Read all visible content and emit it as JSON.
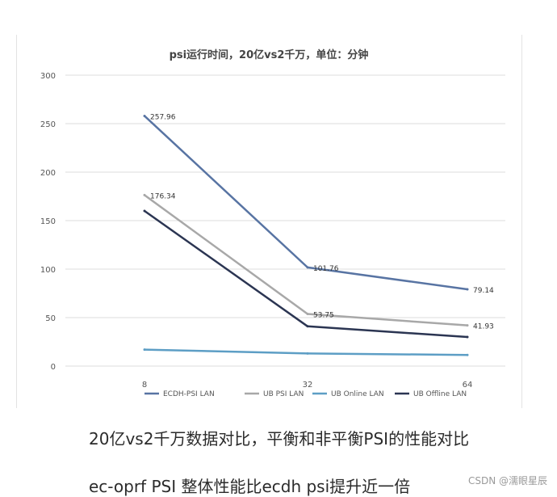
{
  "chart_data": {
    "type": "line",
    "title": "psi运行时间，20亿vs2千万，单位：分钟",
    "xlabel": "",
    "ylabel": "",
    "categories": [
      "8",
      "32",
      "64"
    ],
    "ylim": [
      0,
      300
    ],
    "yticks": [
      0,
      50,
      100,
      150,
      200,
      250,
      300
    ],
    "grid": true,
    "legend_position": "bottom",
    "series": [
      {
        "name": "ECDH-PSI LAN",
        "color": "#5874a3",
        "values": [
          257.96,
          101.76,
          79.14
        ],
        "labels": [
          "257.96",
          "101.76",
          "79.14"
        ]
      },
      {
        "name": "UB PSI LAN",
        "color": "#a8a8a8",
        "values": [
          176.34,
          53.75,
          41.93
        ],
        "labels": [
          "176.34",
          "53.75",
          "41.93"
        ]
      },
      {
        "name": "UB Online LAN",
        "color": "#5d9ec5",
        "values": [
          17,
          13,
          11.5
        ],
        "labels": [
          "",
          "",
          ""
        ]
      },
      {
        "name": "UB Offline LAN",
        "color": "#2b3552",
        "values": [
          160,
          41,
          30
        ],
        "labels": [
          "",
          "",
          ""
        ]
      }
    ]
  },
  "captions": [
    "20亿vs2千万数据对比，平衡和非平衡PSI的性能对比",
    "ec-oprf PSI 整体性能比ecdh psi提升近一倍"
  ],
  "watermark": "CSDN @濡眼星辰"
}
